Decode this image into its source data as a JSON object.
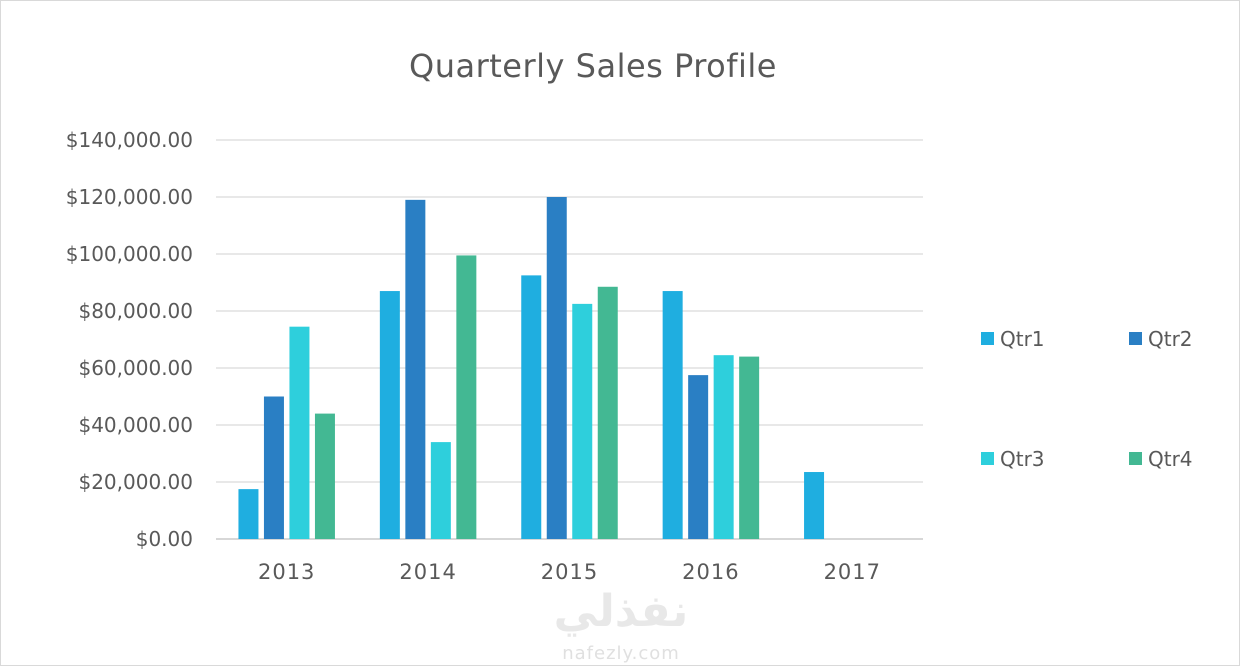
{
  "chart_data": {
    "type": "bar",
    "title": "Quarterly Sales Profile",
    "xlabel": "",
    "ylabel": "",
    "categories": [
      "2013",
      "2014",
      "2015",
      "2016",
      "2017"
    ],
    "ylim": [
      0,
      140000
    ],
    "y_ticks": [
      "$0.00",
      "$20,000.00",
      "$40,000.00",
      "$60,000.00",
      "$80,000.00",
      "$100,000.00",
      "$120,000.00",
      "$140,000.00"
    ],
    "y_tick_values": [
      0,
      20000,
      40000,
      60000,
      80000,
      100000,
      120000,
      140000
    ],
    "grid": true,
    "legend_position": "right",
    "series": [
      {
        "name": "Qtr1",
        "color": "#1faee0",
        "values": [
          17500,
          87000,
          92500,
          87000,
          23500
        ]
      },
      {
        "name": "Qtr2",
        "color": "#2a7fc4",
        "values": [
          50000,
          119000,
          120000,
          57500,
          null
        ]
      },
      {
        "name": "Qtr3",
        "color": "#2ecfdc",
        "values": [
          74500,
          34000,
          82500,
          64500,
          null
        ]
      },
      {
        "name": "Qtr4",
        "color": "#43b893",
        "values": [
          44000,
          99500,
          88500,
          64000,
          null
        ]
      }
    ]
  },
  "watermark": {
    "arabic": "نفذلي",
    "latin": "nafezly.com"
  }
}
